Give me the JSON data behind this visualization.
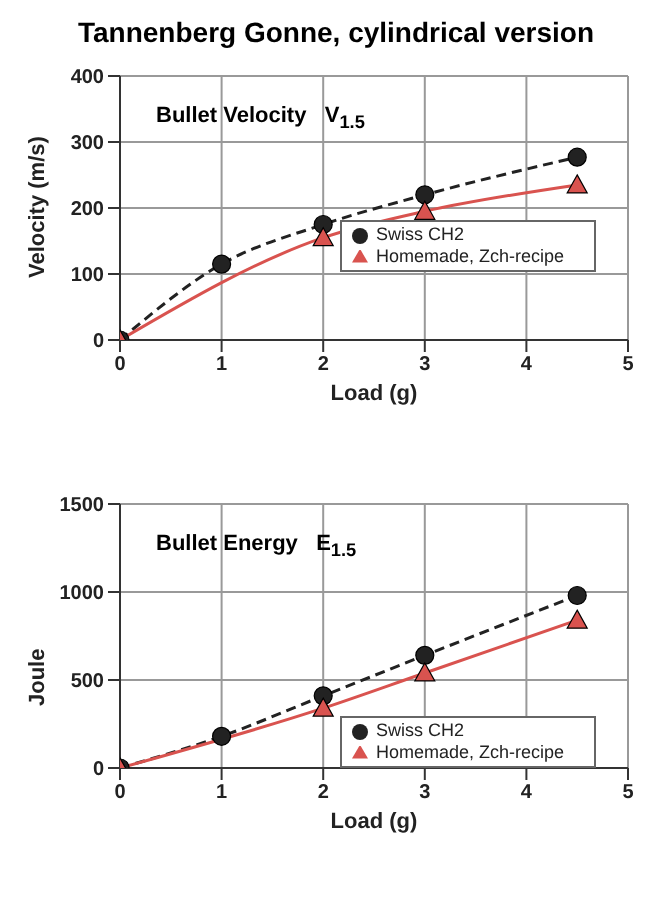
{
  "chart_data": [
    {
      "type": "line",
      "title": "Tannenberg Gonne, cylindrical version",
      "xlabel": "Load (g)",
      "ylabel": "Velocity (m/s)",
      "annotations": [
        "Bullet Velocity   V$_{1.5}$"
      ],
      "xlim": [
        0,
        5
      ],
      "xticks": [
        0,
        1,
        2,
        3,
        4,
        5
      ],
      "ylim": [
        0,
        400
      ],
      "yticks": [
        0,
        100,
        200,
        300,
        400
      ],
      "grid": true,
      "legend": "right",
      "series": [
        {
          "name": "Swiss CH2",
          "color": "#222222",
          "marker": "circle",
          "line_style": "dashed",
          "x": [
            0,
            1,
            2,
            3,
            4.5
          ],
          "values": [
            0,
            115,
            175,
            220,
            277
          ]
        },
        {
          "name": "Homemade, Zch-recipe",
          "color": "#d9534f",
          "marker": "triangle",
          "line_style": "solid",
          "x": [
            0,
            2,
            3,
            4.5
          ],
          "values": [
            0,
            155,
            195,
            235
          ]
        }
      ]
    },
    {
      "type": "line",
      "xlabel": "Load (g)",
      "ylabel": "Joule",
      "annotations": [
        "Bullet Energy   E$_{1.5}$"
      ],
      "xlim": [
        0,
        5
      ],
      "xticks": [
        0,
        1,
        2,
        3,
        4,
        5
      ],
      "ylim": [
        0,
        1500
      ],
      "yticks": [
        0,
        500,
        1000,
        1500
      ],
      "grid": true,
      "legend": "bottom right",
      "series": [
        {
          "name": "Swiss CH2",
          "color": "#222222",
          "marker": "circle",
          "line_style": "dashed",
          "x": [
            0,
            1,
            2,
            3,
            4.5
          ],
          "values": [
            0,
            180,
            410,
            640,
            980
          ]
        },
        {
          "name": "Homemade, Zch-recipe",
          "color": "#d9534f",
          "marker": "triangle",
          "line_style": "solid",
          "x": [
            0,
            2,
            3,
            4.5
          ],
          "values": [
            0,
            340,
            540,
            840
          ]
        }
      ]
    }
  ]
}
